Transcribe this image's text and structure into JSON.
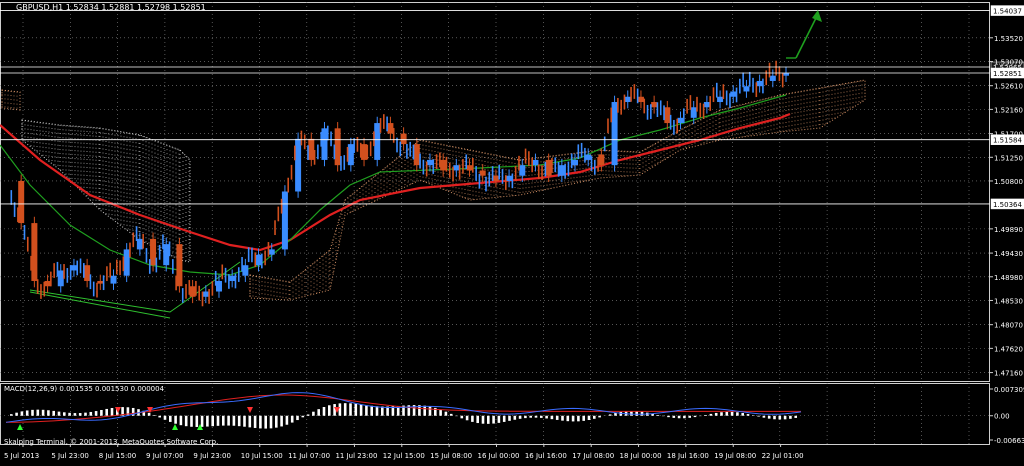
{
  "header": {
    "symbol_line": "GBPUSD,H1  1.52834 1.52881 1.52798 1.52851"
  },
  "main_price_axis": {
    "ticks": [
      "1.53520",
      "1.53070",
      "1.52610",
      "1.52160",
      "1.51700",
      "1.51250",
      "1.50800",
      "1.49890",
      "1.49430",
      "1.48980",
      "1.48530",
      "1.48070",
      "1.47620",
      "1.47160"
    ],
    "flags": [
      "1.54037",
      "1.52965",
      "1.52851",
      "1.51584",
      "1.50364"
    ]
  },
  "macd_panel": {
    "title": "MACD(12,26,9) 0.001535 0.001530 0.000004",
    "ticks": [
      "0.007309",
      "0.00",
      "-0.00663"
    ]
  },
  "watermark": "Skalping Terminal,  © 2001-2013, MetaQuotes Software Corp.",
  "time_axis": {
    "labels": [
      "5 Jul 2013",
      "5 Jul 23:00",
      "8 Jul 15:00",
      "9 Jul 07:00",
      "9 Jul 23:00",
      "10 Jul 15:00",
      "11 Jul 07:00",
      "11 Jul 23:00",
      "12 Jul 15:00",
      "15 Jul 08:00",
      "16 Jul 00:00",
      "16 Jul 16:00",
      "17 Jul 08:00",
      "18 Jul 00:00",
      "18 Jul 16:00",
      "19 Jul 08:00",
      "22 Jul 01:00"
    ]
  },
  "colors": {
    "background": "#000000",
    "grid": "#8a8a8a",
    "bull": "#3a8cff",
    "bear": "#d2501e",
    "ma_red": "#e02020",
    "ma_green": "#1fa01f",
    "cloud_light": "#d8d8d8",
    "cloud_orange": "#e8a070",
    "arrow": "#1fa01f",
    "macd_signal": "#e02020",
    "macd_line": "#3a6cff"
  },
  "chart_data": {
    "type": "candlestick",
    "symbol": "GBPUSD",
    "timeframe": "H1",
    "ohlc_last": {
      "open": 1.52834,
      "high": 1.52881,
      "low": 1.52798,
      "close": 1.52851
    },
    "ylim": [
      1.47,
      1.542
    ],
    "horizontal_levels": [
      1.54037,
      1.52965,
      1.52851,
      1.51584,
      1.50364
    ],
    "close_trace": [
      1.508,
      1.5,
      1.489,
      1.488,
      1.491,
      1.492,
      1.489,
      1.4885,
      1.49,
      1.495,
      1.497,
      1.492,
      1.496,
      1.488,
      1.486,
      1.487,
      1.489,
      1.49,
      1.492,
      1.494,
      1.495,
      1.506,
      1.516,
      1.512,
      1.518,
      1.511,
      1.515,
      1.512,
      1.519,
      1.517,
      1.515,
      1.511,
      1.512,
      1.51,
      1.511,
      1.51,
      1.509,
      1.508,
      1.509,
      1.511,
      1.512,
      1.509,
      1.511,
      1.512,
      1.513,
      1.511,
      1.523,
      1.524,
      1.523,
      1.522,
      1.519,
      1.52,
      1.522,
      1.523,
      1.524,
      1.525,
      1.526,
      1.527,
      1.528,
      1.5285
    ],
    "macd": {
      "macd": 0.001535,
      "signal": 0.00153,
      "histogram": 4e-06,
      "ylim": [
        -0.00663,
        0.007309
      ]
    }
  }
}
